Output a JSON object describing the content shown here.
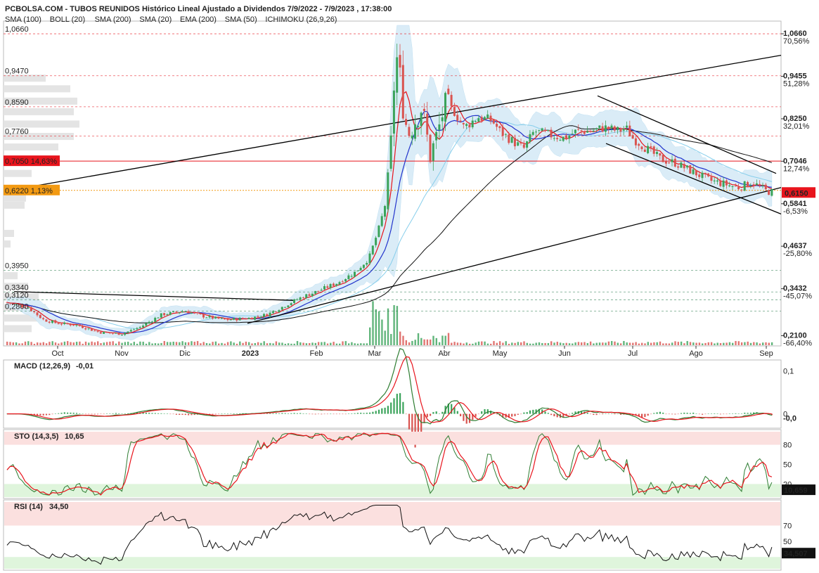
{
  "header": {
    "title": "PCBOLSA.COM - TUBOS REUNIDOS Histórico Lineal Ajustado a Dividendos 7/9/2022 - 7/9/2023 , 17:38:00",
    "legend": [
      {
        "label": "SMA (100)",
        "color": "#87ceeb"
      },
      {
        "label": "BOLL (20)",
        "color": "#d0d0d0"
      },
      {
        "label": "SMA (200)",
        "color": "#111111"
      },
      {
        "label": "SMA (20)",
        "color": "#e8141c"
      },
      {
        "label": "EMA (200)",
        "color": "#111111"
      },
      {
        "label": "SMA (50)",
        "color": "#2233cc"
      },
      {
        "label": "ICHIMOKU (26,9,26)",
        "color": "#8aa0a8"
      }
    ]
  },
  "colors": {
    "up": "#3aa35a",
    "down": "#d9534f",
    "band": "#d6ebf7",
    "sma20": "#e8141c",
    "sma50": "#2233cc",
    "sma100": "#87ceeb",
    "sma200": "#111111",
    "priceTag": "#e8141c",
    "orangeTag": "#f39a12"
  },
  "chart_data": [
    {
      "type": "candlestick",
      "title": "PCBOLSA.COM - TUBOS REUNIDOS Histórico Lineal Ajustado a Dividendos 7/9/2022 - 7/9/2023 , 17:38:00",
      "x_months": [
        "Oct",
        "Nov",
        "Dic",
        "2023",
        "Feb",
        "Mar",
        "Abr",
        "May",
        "Jun",
        "Jul",
        "Ago",
        "Sep"
      ],
      "ylim": [
        0.185,
        1.09
      ],
      "right_ticks": [
        {
          "price": 1.066,
          "label": "1,0660",
          "pct": "70,56%"
        },
        {
          "price": 0.9455,
          "label": "0,9455",
          "pct": "51,28%"
        },
        {
          "price": 0.825,
          "label": "0,8250",
          "pct": "32,01%"
        },
        {
          "price": 0.7046,
          "label": "0,7046",
          "pct": "12,74%"
        },
        {
          "price": 0.5841,
          "label": "0,5841",
          "pct": "-6,53%"
        },
        {
          "price": 0.4637,
          "label": "0,4637",
          "pct": "-25,80%"
        },
        {
          "price": 0.3432,
          "label": "0,3432",
          "pct": "-45,07%"
        },
        {
          "price": 0.21,
          "label": "0,2100",
          "pct": "-66,40%"
        }
      ],
      "left_levels": [
        {
          "price": 1.066,
          "label": "1,0660"
        },
        {
          "price": 0.947,
          "label": "0,9470"
        },
        {
          "price": 0.859,
          "label": "0,8590"
        },
        {
          "price": 0.776,
          "label": "0,7760"
        },
        {
          "price": 0.395,
          "label": "0,3950"
        },
        {
          "price": 0.334,
          "label": "0,3340"
        },
        {
          "price": 0.312,
          "label": "0,3120"
        },
        {
          "price": 0.28,
          "label": "0,2800"
        }
      ],
      "tagged_levels": [
        {
          "price": 0.705,
          "label": "0,7050",
          "pct": "14,63%"
        },
        {
          "price": 0.622,
          "label": "0,6220",
          "pct": "1,13%"
        }
      ],
      "last_price": {
        "price": 0.615,
        "label": "0,6150"
      },
      "close_series": [
        {
          "month": "Sep",
          "close": 0.3
        },
        {
          "month": "Oct",
          "close": 0.24
        },
        {
          "month": "Nov",
          "close": 0.21
        },
        {
          "month": "Dic",
          "close": 0.28
        },
        {
          "month": "2023",
          "close": 0.26
        },
        {
          "month": "Feb",
          "close": 0.34
        },
        {
          "month": "Mar",
          "close": 0.45
        },
        {
          "month": "Mar-peak",
          "close": 1.066
        },
        {
          "month": "Abr",
          "close": 0.88
        },
        {
          "month": "May",
          "close": 0.76
        },
        {
          "month": "Jun",
          "close": 0.8
        },
        {
          "month": "Jul",
          "close": 0.78
        },
        {
          "month": "Ago",
          "close": 0.68
        },
        {
          "month": "Sep",
          "close": 0.615
        }
      ]
    },
    {
      "type": "line",
      "title": "MACD (12,26,9)",
      "value_label": "-0,01",
      "right_ticks": [
        {
          "value": 0.1,
          "label": "0,1"
        },
        {
          "value": 0,
          "label": "0"
        }
      ],
      "current_label": "-0,0",
      "ylim": [
        -0.03,
        0.12
      ]
    },
    {
      "type": "line",
      "title": "STO (14,3,5)",
      "value_label": "10,65",
      "right_ticks": [
        {
          "value": 80,
          "label": "80"
        },
        {
          "value": 50,
          "label": "50"
        },
        {
          "value": 20,
          "label": "20"
        }
      ],
      "current_label": "10,659",
      "ylim": [
        0,
        100
      ]
    },
    {
      "type": "line",
      "title": "RSI (14)",
      "value_label": "34,50",
      "right_ticks": [
        {
          "value": 70,
          "label": "70"
        },
        {
          "value": 50,
          "label": "50"
        }
      ],
      "current_label": "34,507",
      "ylim": [
        15,
        100
      ]
    }
  ]
}
